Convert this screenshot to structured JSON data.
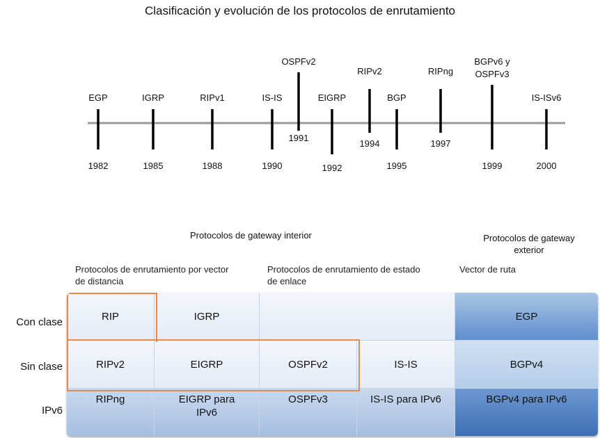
{
  "title": "Clasificación y evolución de los protocolos de enrutamiento",
  "timeline": {
    "events": [
      {
        "protocol": "EGP",
        "year": "1982"
      },
      {
        "protocol": "IGRP",
        "year": "1985"
      },
      {
        "protocol": "RIPv1",
        "year": "1988"
      },
      {
        "protocol": "IS-IS",
        "year": "1990"
      },
      {
        "protocol": "OSPFv2",
        "year": "1991"
      },
      {
        "protocol": "EIGRP",
        "year": "1992"
      },
      {
        "protocol": "RIPv2",
        "year": "1994"
      },
      {
        "protocol": "BGP",
        "year": "1995"
      },
      {
        "protocol": "RIPng",
        "year": "1997"
      },
      {
        "protocol_line1": "BGPv6 y",
        "protocol_line2": "OSPFv3",
        "year": "1999"
      },
      {
        "protocol": "IS-ISv6",
        "year": "2000"
      }
    ]
  },
  "headers": {
    "interior": "Protocolos de gateway interior",
    "exterior_line1": "Protocolos de gateway",
    "exterior_line2": "exterior",
    "distance_vector_line1": "Protocolos de enrutamiento por vector",
    "distance_vector_line2": "de distancia",
    "link_state_line1": "Protocolos de enrutamiento de estado",
    "link_state_line2": "de enlace",
    "path_vector": "Vector de ruta"
  },
  "rows": {
    "classful": "Con clase",
    "classless": "Sin clase",
    "ipv6": "IPv6"
  },
  "cells": {
    "classful": {
      "c1": "RIP",
      "c2": "IGRP",
      "c34": "",
      "c5": "EGP"
    },
    "classless": {
      "c1": "RIPv2",
      "c2": "EIGRP",
      "c3": "OSPFv2",
      "c4": "IS-IS",
      "c5": "BGPv4"
    },
    "ipv6": {
      "c1": "RIPng",
      "c2_line1": "EIGRP para",
      "c2_line2": "IPv6",
      "c3": "OSPFv3",
      "c4": "IS-IS para IPv6",
      "c5": "BGPv4 para IPv6"
    }
  },
  "colors": {
    "highlight_outline": "#e08a55",
    "exterior_dark": "#3e6fb5",
    "timeline_axis": "#999999"
  }
}
